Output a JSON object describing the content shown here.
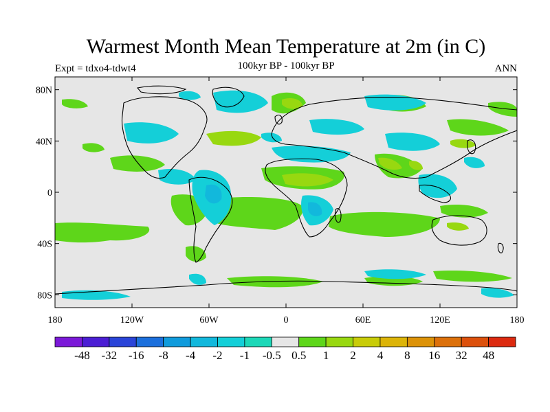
{
  "title": "Warmest Month Mean Temperature at 2m (in C)",
  "left_label": "Expt = tdxo4-tdwt4",
  "center_label": "100kyr BP - 100kyr BP",
  "right_label": "ANN",
  "lat_ticks": [
    "80N",
    "40N",
    "0",
    "40S",
    "80S"
  ],
  "lat_values": [
    80,
    40,
    0,
    -40,
    -80
  ],
  "lon_ticks": [
    "180",
    "120W",
    "60W",
    "0",
    "60E",
    "120E",
    "180"
  ],
  "lon_values": [
    -180,
    -120,
    -60,
    0,
    60,
    120,
    180
  ],
  "colorbar": {
    "colors": [
      "#7b19d8",
      "#4b1ed4",
      "#2a44d8",
      "#1b6fdc",
      "#109bdc",
      "#12b8dc",
      "#14cfd8",
      "#1cd8b8",
      "#e6e6e6",
      "#5ed61a",
      "#98d810",
      "#c8cc08",
      "#dcb408",
      "#dc9208",
      "#dc700a",
      "#dc500c",
      "#dc2a10"
    ],
    "labels": [
      "-48",
      "-32",
      "-16",
      "-8",
      "-4",
      "-2",
      "-1",
      "-0.5",
      "0.5",
      "1",
      "2",
      "4",
      "8",
      "16",
      "32",
      "48"
    ]
  },
  "background_color": "#e6e6e6"
}
